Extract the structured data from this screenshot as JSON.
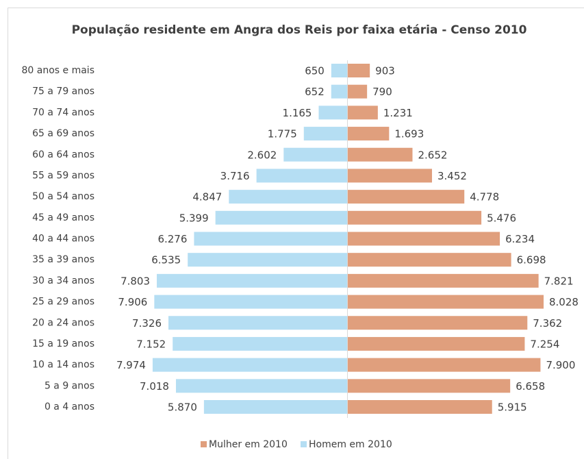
{
  "chart_data": {
    "type": "bar",
    "orientation": "horizontal",
    "layout": "pyramid",
    "title": "População residente em Angra dos Reis por faixa etária - Censo 2010",
    "categories": [
      "80 anos e mais",
      "75 a 79 anos",
      "70 a 74 anos",
      "65 a 69 anos",
      "60 a 64 anos",
      "55 a 59 anos",
      "50 a 54 anos",
      "45 a 49 anos",
      "40 a 44 anos",
      "35 a 39 anos",
      "30 a 34 anos",
      "25 a 29 anos",
      "20 a 24 anos",
      "15 a 19 anos",
      "10 a 14 anos",
      "5 a 9 anos",
      "0 a 4 anos"
    ],
    "series": [
      {
        "name": "Mulher em 2010",
        "color": "#e09f7d",
        "values": [
          903,
          790,
          1231,
          1693,
          2652,
          3452,
          4778,
          5476,
          6234,
          6698,
          7821,
          8028,
          7362,
          7254,
          7900,
          6658,
          5915
        ],
        "value_labels": [
          "903",
          "790",
          "1.231",
          "1.693",
          "2.652",
          "3.452",
          "4.778",
          "5.476",
          "6.234",
          "6.698",
          "7.821",
          "8.028",
          "7.362",
          "7.254",
          "7.900",
          "6.658",
          "5.915"
        ]
      },
      {
        "name": "Homem em 2010",
        "color": "#b5def3",
        "values": [
          650,
          652,
          1165,
          1775,
          2602,
          3716,
          4847,
          5399,
          6276,
          6535,
          7803,
          7906,
          7326,
          7152,
          7974,
          7018,
          5870
        ],
        "value_labels": [
          "650",
          "652",
          "1.165",
          "1.775",
          "2.602",
          "3.716",
          "4.847",
          "5.399",
          "6.276",
          "6.535",
          "7.803",
          "7.906",
          "7.326",
          "7.152",
          "7.974",
          "7.018",
          "5.870"
        ]
      }
    ],
    "legend": "bottom"
  }
}
